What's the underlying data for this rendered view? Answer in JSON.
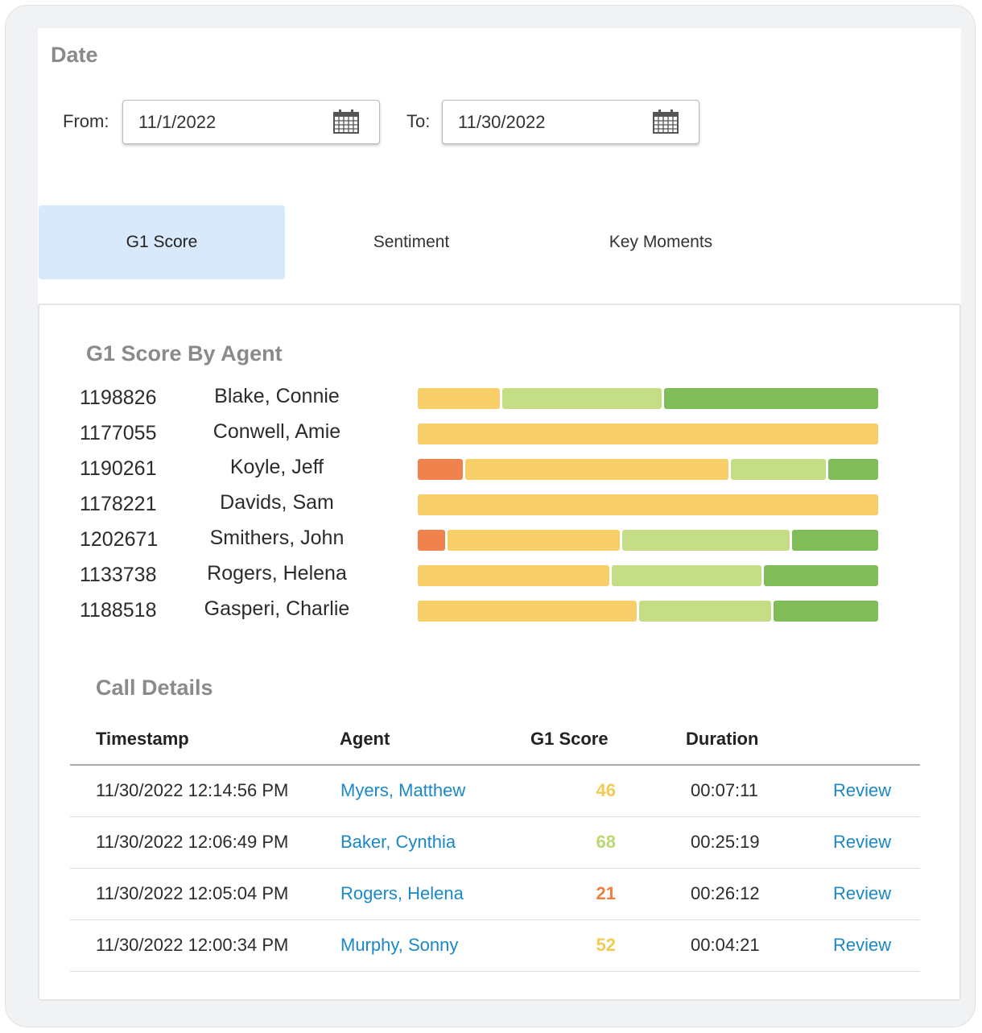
{
  "date": {
    "title": "Date",
    "from_label": "From:",
    "from_value": "11/1/2022",
    "to_label": "To:",
    "to_value": "11/30/2022",
    "calendar_icon": "calendar-icon"
  },
  "tabs": [
    {
      "label": "G1 Score",
      "active": true
    },
    {
      "label": "Sentiment",
      "active": false
    },
    {
      "label": "Key Moments",
      "active": false
    }
  ],
  "g1_section": {
    "title": "G1 Score By Agent",
    "colors": {
      "red": "#f0834d",
      "yellow": "#f8ce68",
      "light_green": "#c5de85",
      "green": "#80bd58"
    },
    "agents": [
      {
        "id": "1198826",
        "name": "Blake, Connie",
        "distribution": {
          "red": 0,
          "yellow": 0.18,
          "light_green": 0.35,
          "green": 0.47
        }
      },
      {
        "id": "1177055",
        "name": "Conwell, Amie",
        "distribution": {
          "red": 0,
          "yellow": 1.0,
          "light_green": 0,
          "green": 0
        }
      },
      {
        "id": "1190261",
        "name": "Koyle, Jeff",
        "distribution": {
          "red": 0.1,
          "yellow": 0.58,
          "light_green": 0.21,
          "green": 0.11
        }
      },
      {
        "id": "1178221",
        "name": "Davids, Sam",
        "distribution": {
          "red": 0,
          "yellow": 1.0,
          "light_green": 0,
          "green": 0
        }
      },
      {
        "id": "1202671",
        "name": "Smithers, John",
        "distribution": {
          "red": 0.06,
          "yellow": 0.38,
          "light_green": 0.37,
          "green": 0.19
        }
      },
      {
        "id": "1133738",
        "name": "Rogers, Helena",
        "distribution": {
          "red": 0,
          "yellow": 0.42,
          "light_green": 0.33,
          "green": 0.25
        }
      },
      {
        "id": "1188518",
        "name": "Gasperi, Charlie",
        "distribution": {
          "red": 0,
          "yellow": 0.48,
          "light_green": 0.29,
          "green": 0.23
        }
      }
    ]
  },
  "call_details": {
    "title": "Call Details",
    "headers": {
      "timestamp": "Timestamp",
      "agent": "Agent",
      "score": "G1 Score",
      "duration": "Duration"
    },
    "rows": [
      {
        "timestamp": "11/30/2022 12:14:56 PM",
        "agent": "Myers, Matthew",
        "score": "46",
        "score_color": "#f3c94f",
        "duration": "00:07:11",
        "action": "Review"
      },
      {
        "timestamp": "11/30/2022 12:06:49 PM",
        "agent": "Baker, Cynthia",
        "score": "68",
        "score_color": "#b9d873",
        "duration": "00:25:19",
        "action": "Review"
      },
      {
        "timestamp": "11/30/2022 12:05:04 PM",
        "agent": "Rogers, Helena",
        "score": "21",
        "score_color": "#ef7f3e",
        "duration": "00:26:12",
        "action": "Review"
      },
      {
        "timestamp": "11/30/2022 12:00:34 PM",
        "agent": "Murphy, Sonny",
        "score": "52",
        "score_color": "#f3c94f",
        "duration": "00:04:21",
        "action": "Review"
      }
    ]
  }
}
